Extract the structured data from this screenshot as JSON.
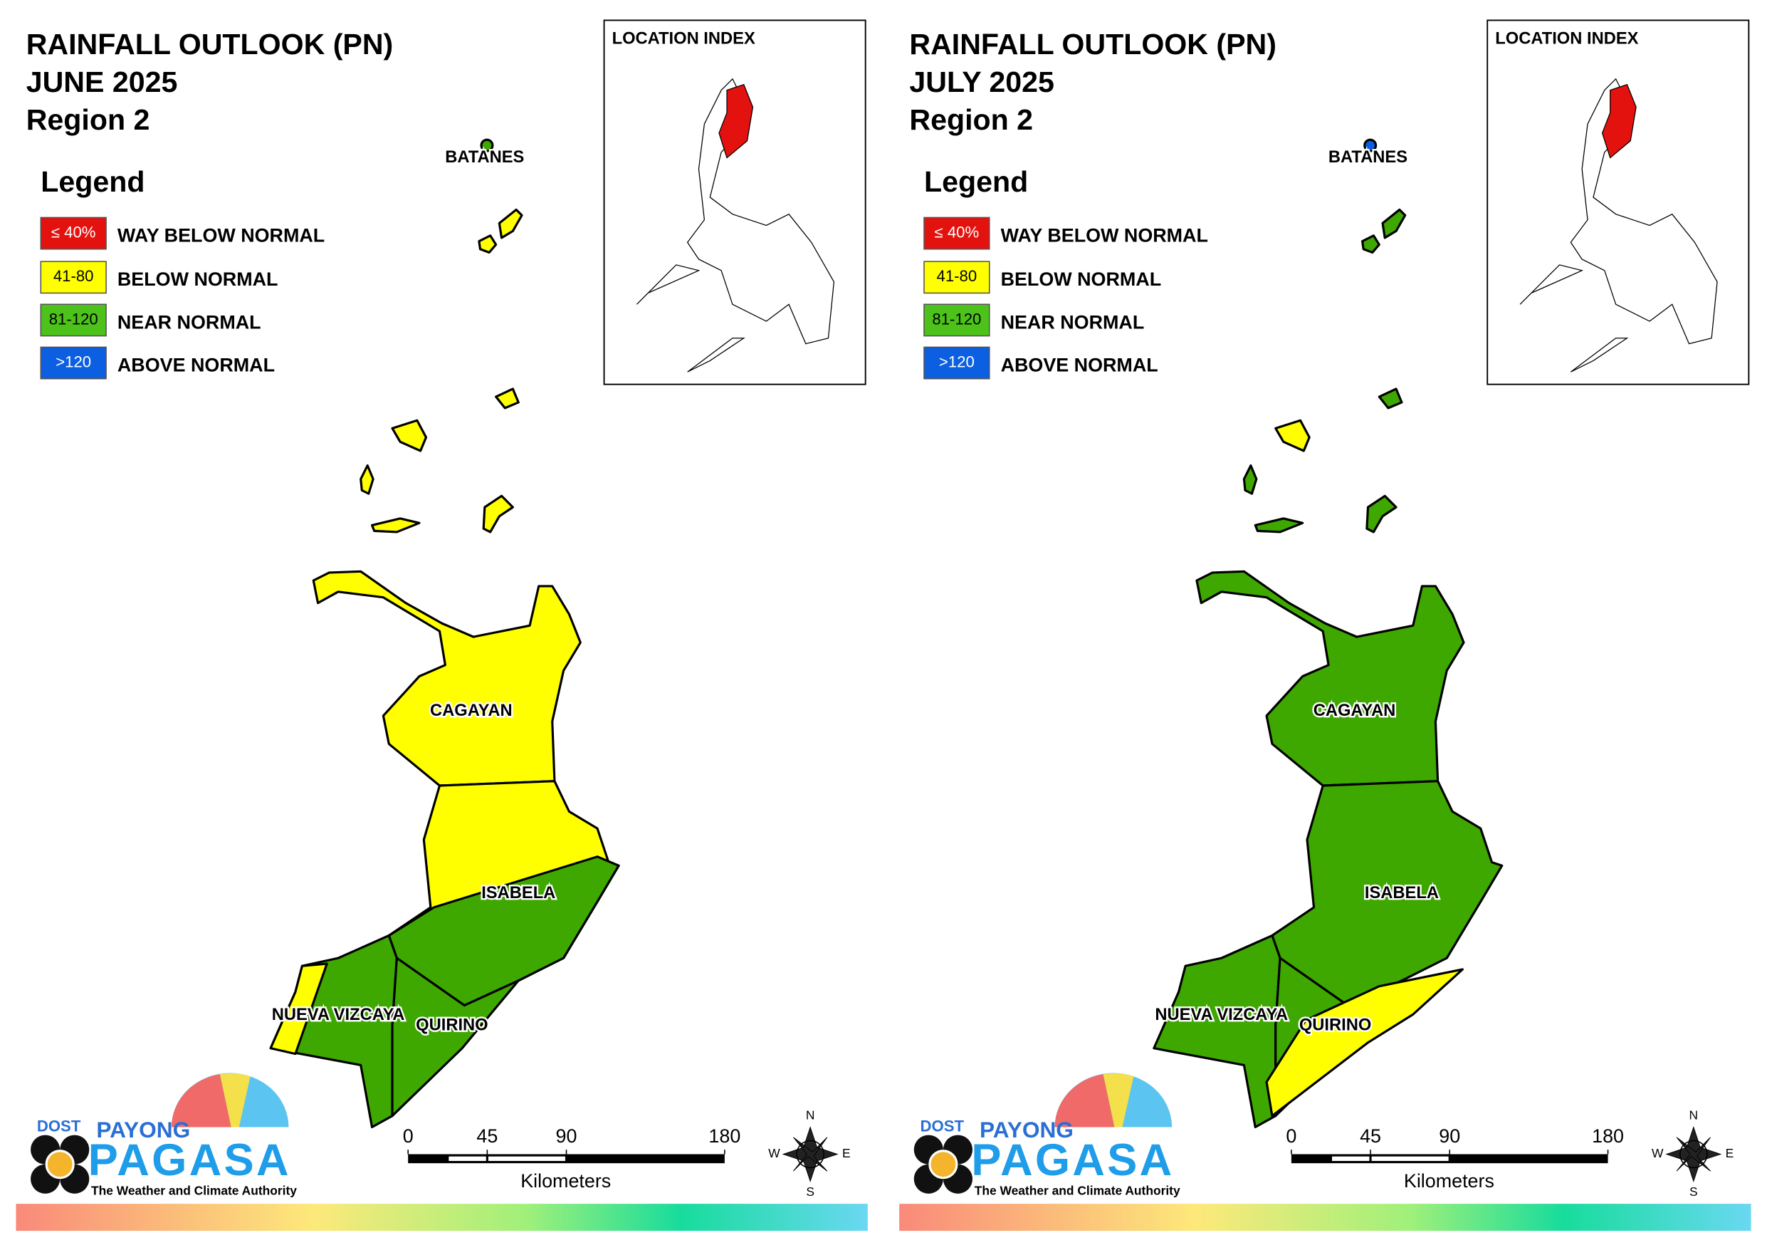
{
  "panels": [
    {
      "title": [
        "RAINFALL OUTLOOK (PN)",
        "JUNE 2025",
        "Region 2"
      ],
      "legend_title": "Legend",
      "legend": [
        {
          "code": "≤ 40%",
          "label": "WAY BELOW NORMAL",
          "color": "#e3120f"
        },
        {
          "code": "41-80",
          "label": "BELOW NORMAL",
          "color": "#ffff00"
        },
        {
          "code": "81-120",
          "label": "NEAR NORMAL",
          "color": "#4cc21a"
        },
        {
          "code": ">120",
          "label": "ABOVE NORMAL",
          "color": "#0c5fe0"
        }
      ],
      "location_index": "LOCATION INDEX",
      "provinces": [
        "BATANES",
        "CAGAYAN",
        "ISABELA",
        "NUEVA VIZCAYA",
        "QUIRINO"
      ],
      "scale": {
        "ticks": [
          0,
          45,
          90,
          180
        ],
        "unit": "Kilometers"
      },
      "compass": [
        "N",
        "E",
        "S",
        "W"
      ],
      "logo": {
        "agency": "DOST",
        "brand_top": "PAYONG",
        "brand": "PAGASA",
        "tagline": "The Weather and Climate Authority"
      }
    },
    {
      "title": [
        "RAINFALL OUTLOOK (PN)",
        "JULY 2025",
        "Region 2"
      ],
      "legend_title": "Legend",
      "legend": [
        {
          "code": "≤ 40%",
          "label": "WAY BELOW NORMAL",
          "color": "#e3120f"
        },
        {
          "code": "41-80",
          "label": "BELOW NORMAL",
          "color": "#ffff00"
        },
        {
          "code": "81-120",
          "label": "NEAR NORMAL",
          "color": "#4cc21a"
        },
        {
          "code": ">120",
          "label": "ABOVE NORMAL",
          "color": "#0c5fe0"
        }
      ],
      "location_index": "LOCATION INDEX",
      "provinces": [
        "BATANES",
        "CAGAYAN",
        "ISABELA",
        "NUEVA VIZCAYA",
        "QUIRINO"
      ],
      "scale": {
        "ticks": [
          0,
          45,
          90,
          180
        ],
        "unit": "Kilometers"
      },
      "compass": [
        "N",
        "E",
        "S",
        "W"
      ],
      "logo": {
        "agency": "DOST",
        "brand_top": "PAYONG",
        "brand": "PAGASA",
        "tagline": "The Weather and Climate Authority"
      }
    }
  ]
}
